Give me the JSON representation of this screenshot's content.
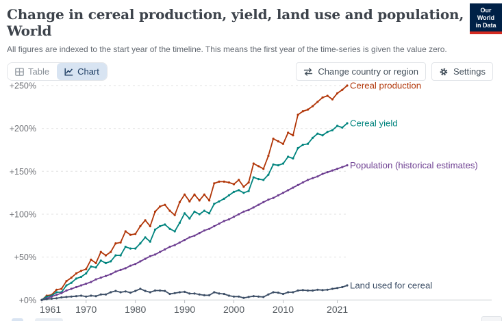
{
  "header": {
    "title": "Change in cereal production, yield, land use and population, World",
    "subtitle": "All figures are indexed to the start year of the timeline. This means the first year of the time-series is given the value zero.",
    "logo": {
      "line1": "Our World",
      "line2": "in Data",
      "bg": "#002147",
      "stripe": "#d42b21"
    }
  },
  "toolbar": {
    "tabs": [
      {
        "label": "Table",
        "active": false
      },
      {
        "label": "Chart",
        "active": true
      }
    ],
    "buttons": [
      {
        "label": "Change country or region",
        "icon": "swap-arrows-icon"
      },
      {
        "label": "Settings",
        "icon": "gear-icon"
      }
    ]
  },
  "chart_data": {
    "type": "line",
    "title": "Change in cereal production, yield, land use and population, World",
    "xlabel": "",
    "ylabel": "",
    "xlim": [
      1961,
      2023
    ],
    "ylim": [
      0,
      250
    ],
    "grid": "horizontal-dashed",
    "legend_position": "right-end-of-line",
    "xticks": [
      1961,
      1970,
      1980,
      1990,
      2000,
      2010,
      2021
    ],
    "yticks": [
      0,
      50,
      100,
      150,
      200,
      250
    ],
    "ytick_labels": [
      "+0%",
      "+50%",
      "+100%",
      "+150%",
      "+200%",
      "+250%"
    ],
    "x": [
      1961,
      1962,
      1963,
      1964,
      1965,
      1966,
      1967,
      1968,
      1969,
      1970,
      1971,
      1972,
      1973,
      1974,
      1975,
      1976,
      1977,
      1978,
      1979,
      1980,
      1981,
      1982,
      1983,
      1984,
      1985,
      1986,
      1987,
      1988,
      1989,
      1990,
      1991,
      1992,
      1993,
      1994,
      1995,
      1996,
      1997,
      1998,
      1999,
      2000,
      2001,
      2002,
      2003,
      2004,
      2005,
      2006,
      2007,
      2008,
      2009,
      2010,
      2011,
      2012,
      2013,
      2014,
      2015,
      2016,
      2017,
      2018,
      2019,
      2020,
      2021,
      2022,
      2023
    ],
    "series": [
      {
        "id": "cereal-production",
        "label": "Cereal production",
        "color": "#B13507",
        "unit": "%",
        "values": [
          0,
          5,
          6,
          12,
          13,
          22,
          26,
          31,
          34,
          36,
          47,
          43,
          56,
          52,
          56,
          66,
          67,
          80,
          76,
          77,
          86,
          93,
          86,
          103,
          109,
          111,
          104,
          99,
          114,
          123,
          115,
          123,
          116,
          123,
          116,
          136,
          138,
          138,
          137,
          135,
          140,
          132,
          137,
          159,
          156,
          153,
          168,
          188,
          185,
          182,
          195,
          192,
          216,
          220,
          222,
          226,
          231,
          236,
          238,
          234,
          241,
          245,
          250
        ]
      },
      {
        "id": "cereal-yield",
        "label": "Cereal yield",
        "color": "#00847E",
        "unit": "%",
        "values": [
          0,
          4,
          5,
          9,
          9,
          17,
          20,
          25,
          27,
          31,
          39,
          38,
          46,
          43,
          45,
          52,
          52,
          62,
          60,
          60,
          66,
          73,
          68,
          82,
          86,
          88,
          83,
          80,
          90,
          101,
          95,
          103,
          100,
          104,
          101,
          112,
          115,
          118,
          122,
          126,
          128,
          125,
          127,
          143,
          141,
          140,
          146,
          158,
          157,
          159,
          167,
          165,
          177,
          181,
          182,
          189,
          194,
          192,
          196,
          198,
          203,
          201,
          206
        ]
      },
      {
        "id": "population",
        "label": "Population (historical estimates)",
        "color": "#6D3E91",
        "unit": "%",
        "values": [
          0,
          2,
          4,
          6,
          8,
          11,
          13,
          15,
          17,
          19,
          21,
          24,
          26,
          28,
          30,
          33,
          35,
          37,
          40,
          42,
          45,
          48,
          51,
          53,
          56,
          59,
          62,
          64,
          67,
          70,
          73,
          75,
          78,
          81,
          83,
          86,
          89,
          92,
          94,
          97,
          100,
          103,
          105,
          108,
          111,
          114,
          117,
          119,
          122,
          125,
          128,
          131,
          134,
          137,
          140,
          142,
          144,
          147,
          149,
          151,
          153,
          155,
          157
        ]
      },
      {
        "id": "land-used-for-cereal",
        "label": "Land used for cereal",
        "color": "#3C4E66",
        "unit": "%",
        "values": [
          0,
          1,
          1.5,
          2,
          3,
          3.5,
          4,
          4.5,
          5,
          4,
          5,
          4.5,
          6.5,
          6.5,
          9,
          10.5,
          9,
          10,
          8.5,
          10.5,
          13,
          10.5,
          9,
          11,
          11,
          10.5,
          7,
          8,
          9,
          9.5,
          7.5,
          7.5,
          6.5,
          5.5,
          5.5,
          9,
          7.5,
          7,
          5,
          4,
          4,
          2.5,
          3.5,
          4.5,
          4,
          3.5,
          6.5,
          9,
          8.5,
          7,
          9,
          9,
          11,
          11.5,
          11,
          11,
          12,
          11.5,
          12,
          13,
          14,
          15,
          17
        ]
      }
    ]
  }
}
